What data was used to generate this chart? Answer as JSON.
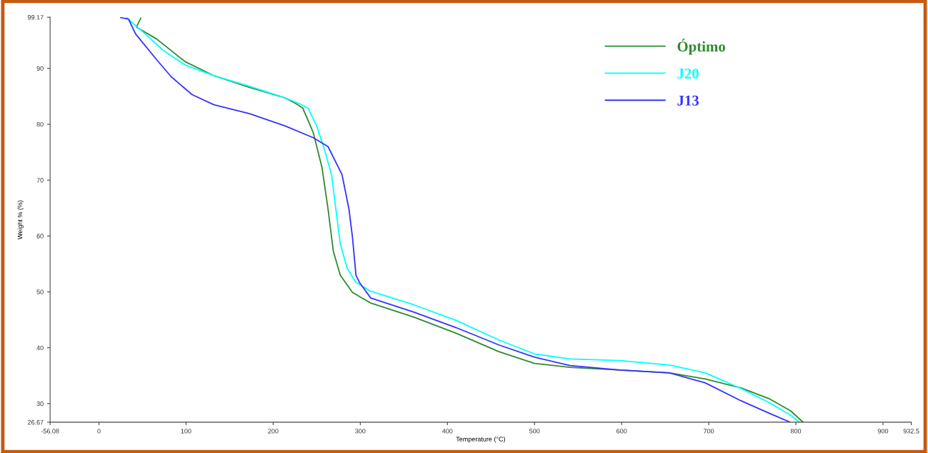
{
  "chart_data": {
    "type": "line",
    "xlabel": "Temperature (°C)",
    "ylabel": "Weight % (%)",
    "xlim": [
      -56.08,
      932.5
    ],
    "ylim": [
      26.67,
      99.17
    ],
    "xticks": [
      -56.08,
      0,
      100,
      200,
      300,
      400,
      500,
      600,
      700,
      800,
      900,
      932.5
    ],
    "yticks": [
      26.67,
      30,
      40,
      50,
      60,
      70,
      80,
      90,
      99.17
    ],
    "grid": false,
    "legend": "top right",
    "line_style": "solid",
    "marker": "none",
    "series": [
      {
        "name": "Óptimo",
        "color": "#2e8b2e",
        "x": [
          48,
          43,
          66,
          99,
          132,
          173,
          214,
          226,
          234,
          246,
          256,
          263,
          269,
          277,
          291,
          312,
          361,
          410,
          459,
          500,
          541,
          598,
          655,
          696,
          737,
          769,
          794,
          808
        ],
        "values": [
          99.0,
          97.4,
          95.3,
          91.2,
          88.7,
          86.6,
          84.7,
          83.7,
          82.9,
          78.5,
          72.3,
          64.8,
          57.3,
          53.0,
          49.9,
          48.0,
          45.5,
          42.6,
          39.3,
          37.2,
          36.5,
          36.0,
          35.5,
          34.4,
          32.8,
          30.9,
          28.7,
          26.7
        ]
      },
      {
        "name": "J20",
        "color": "#00ffff",
        "x": [
          32,
          38,
          50,
          74,
          99,
          132,
          173,
          214,
          230,
          240,
          250,
          259,
          267,
          271,
          277,
          285,
          295,
          312,
          361,
          410,
          459,
          500,
          541,
          598,
          655,
          696,
          737,
          769,
          794,
          804
        ],
        "values": [
          99.1,
          98.2,
          96.6,
          93.2,
          90.6,
          88.7,
          86.8,
          84.7,
          83.7,
          82.9,
          79.7,
          75.4,
          71.0,
          66.0,
          58.6,
          54.2,
          51.7,
          50.1,
          47.7,
          44.9,
          41.4,
          38.9,
          38.0,
          37.7,
          36.9,
          35.5,
          32.7,
          30.2,
          27.9,
          26.7
        ]
      },
      {
        "name": "J13",
        "color": "#3333ff",
        "x": [
          25,
          34,
          42,
          66,
          83,
          107,
          132,
          173,
          214,
          246,
          263,
          279,
          287,
          291,
          295,
          299,
          312,
          361,
          410,
          459,
          500,
          541,
          598,
          655,
          696,
          737,
          769,
          793
        ],
        "values": [
          99.1,
          98.8,
          96.2,
          91.6,
          88.5,
          85.3,
          83.5,
          81.9,
          79.7,
          77.6,
          76.0,
          71.0,
          64.8,
          59.8,
          53.0,
          51.7,
          48.9,
          46.4,
          43.6,
          40.5,
          38.3,
          36.8,
          36.0,
          35.5,
          33.7,
          30.5,
          28.3,
          26.7
        ]
      }
    ]
  }
}
